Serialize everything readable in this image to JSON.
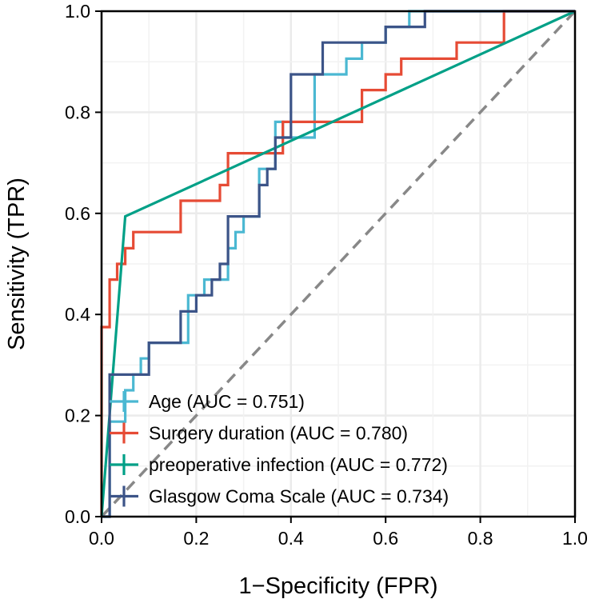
{
  "chart_data": {
    "type": "line",
    "title": "",
    "xlabel": "1−Specificity (FPR)",
    "ylabel": "Sensitivity (TPR)",
    "xlim": [
      0,
      1
    ],
    "ylim": [
      0,
      1
    ],
    "x_ticks": [
      "0.0",
      "0.2",
      "0.4",
      "0.6",
      "0.8",
      "1.0"
    ],
    "y_ticks": [
      "0.0",
      "0.2",
      "0.4",
      "0.6",
      "0.8",
      "1.0"
    ],
    "grid": true,
    "legend_position": "bottom-left",
    "reference_line": {
      "x": [
        0,
        1
      ],
      "y": [
        0,
        1
      ],
      "style": "dashed",
      "color": "#888888"
    },
    "series": [
      {
        "name": "Age",
        "label": "Age (AUC = 0.751)",
        "auc": 0.751,
        "color": "#4BB8D2",
        "x": [
          0,
          0.017,
          0.017,
          0.05,
          0.05,
          0.067,
          0.067,
          0.083,
          0.083,
          0.1,
          0.1,
          0.183,
          0.183,
          0.217,
          0.217,
          0.267,
          0.267,
          0.283,
          0.283,
          0.3,
          0.3,
          0.333,
          0.333,
          0.367,
          0.367,
          0.383,
          0.383,
          0.45,
          0.45,
          0.467,
          0.467,
          0.517,
          0.517,
          0.55,
          0.55,
          0.6,
          0.6,
          0.65,
          0.65,
          1.0
        ],
        "y": [
          0,
          0,
          0.188,
          0.188,
          0.25,
          0.25,
          0.281,
          0.281,
          0.313,
          0.313,
          0.344,
          0.344,
          0.438,
          0.438,
          0.469,
          0.469,
          0.531,
          0.531,
          0.563,
          0.563,
          0.594,
          0.594,
          0.688,
          0.688,
          0.781,
          0.781,
          0.75,
          0.75,
          0.875,
          0.875,
          0.875,
          0.875,
          0.906,
          0.906,
          0.938,
          0.938,
          0.969,
          0.969,
          1.0,
          1.0
        ]
      },
      {
        "name": "Surgery duration",
        "label": "Surgery duration (AUC = 0.780)",
        "auc": 0.78,
        "color": "#E64B35",
        "x": [
          0,
          0,
          0.017,
          0.017,
          0.033,
          0.033,
          0.05,
          0.05,
          0.067,
          0.067,
          0.117,
          0.117,
          0.133,
          0.133,
          0.167,
          0.167,
          0.183,
          0.183,
          0.25,
          0.25,
          0.267,
          0.267,
          0.383,
          0.383,
          0.55,
          0.55,
          0.6,
          0.6,
          0.633,
          0.633,
          0.75,
          0.75,
          0.85,
          0.85,
          1.0
        ],
        "y": [
          0,
          0.375,
          0.375,
          0.469,
          0.469,
          0.5,
          0.5,
          0.531,
          0.531,
          0.563,
          0.563,
          0.563,
          0.563,
          0.563,
          0.563,
          0.625,
          0.625,
          0.625,
          0.625,
          0.656,
          0.656,
          0.719,
          0.719,
          0.781,
          0.781,
          0.844,
          0.844,
          0.875,
          0.875,
          0.906,
          0.906,
          0.938,
          0.938,
          1.0,
          1.0
        ]
      },
      {
        "name": "preoperative infection",
        "label": "preoperative infection (AUC = 0.772)",
        "auc": 0.772,
        "color": "#00A087",
        "x": [
          0,
          0.05,
          1.0
        ],
        "y": [
          0,
          0.594,
          1.0
        ]
      },
      {
        "name": "Glasgow Coma Scale",
        "label": "Glasgow Coma Scale (AUC = 0.734)",
        "auc": 0.734,
        "color": "#3C5488",
        "x": [
          0,
          0.017,
          0.017,
          0.1,
          0.1,
          0.167,
          0.167,
          0.2,
          0.2,
          0.233,
          0.233,
          0.25,
          0.25,
          0.267,
          0.267,
          0.3,
          0.3,
          0.333,
          0.333,
          0.35,
          0.35,
          0.367,
          0.367,
          0.4,
          0.4,
          0.467,
          0.467,
          0.6,
          0.6,
          0.683,
          0.683,
          0.9,
          0.9,
          1.0
        ],
        "y": [
          0,
          0,
          0.281,
          0.281,
          0.344,
          0.344,
          0.406,
          0.406,
          0.438,
          0.438,
          0.469,
          0.469,
          0.5,
          0.5,
          0.594,
          0.594,
          0.594,
          0.594,
          0.656,
          0.656,
          0.688,
          0.688,
          0.75,
          0.75,
          0.875,
          0.875,
          0.938,
          0.938,
          0.969,
          0.969,
          1.0,
          1.0,
          1.0,
          1.0
        ]
      }
    ]
  }
}
